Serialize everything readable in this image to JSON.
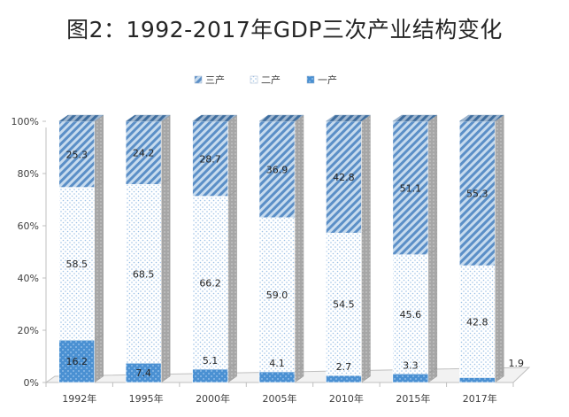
{
  "chart_data": {
    "type": "bar",
    "stacked": true,
    "percent_stacked": true,
    "style_3d": true,
    "title": "图2：1992-2017年GDP三次产业结构变化",
    "categories": [
      "1992年",
      "1995年",
      "2000年",
      "2005年",
      "2010年",
      "2015年",
      "2017年"
    ],
    "series": [
      {
        "name": "一产",
        "values": [
          16.2,
          7.4,
          5.1,
          4.1,
          2.7,
          3.3,
          1.9
        ],
        "color": "#4a90d2",
        "pattern": "dotted-solid"
      },
      {
        "name": "二产",
        "values": [
          58.5,
          68.5,
          66.2,
          59.0,
          54.5,
          45.6,
          42.8
        ],
        "color": "#bfd8ee",
        "pattern": "light-dots"
      },
      {
        "name": "三产",
        "values": [
          25.3,
          24.2,
          28.7,
          36.9,
          42.8,
          51.1,
          55.3
        ],
        "color": "#5b8fc7",
        "pattern": "diagonal-stripes"
      }
    ],
    "data_labels": {
      "一产": [
        "16.2",
        "7.4",
        "5.1",
        "4.1",
        "2.7",
        "3.3",
        "1.9"
      ],
      "二产": [
        "58.5",
        "68.5",
        "66.2",
        "59.0",
        "54.5",
        "45.6",
        "42.8"
      ],
      "三产": [
        "25.3",
        "24.2",
        "28.7",
        "36.9",
        "42.8",
        "51.1",
        "55.3"
      ]
    },
    "legend_order": [
      "三产",
      "二产",
      "一产"
    ],
    "y_ticks": [
      "0%",
      "20%",
      "40%",
      "60%",
      "80%",
      "100%"
    ],
    "ylim": [
      0,
      100
    ],
    "grid": false,
    "legend_position": "top"
  }
}
